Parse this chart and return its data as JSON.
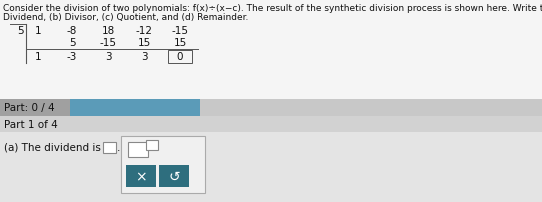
{
  "synth_c": "5",
  "synth_row1": [
    "1",
    "-8",
    "18",
    "-12",
    "-15"
  ],
  "synth_row2": [
    "",
    "5",
    "-15",
    "15",
    "15"
  ],
  "synth_row3": [
    "1",
    "-3",
    "3",
    "3",
    "0"
  ],
  "part_progress_text": "Part: 0 / 4",
  "part_label": "Part 1 of 4",
  "part_a_text": "(a) The dividend is",
  "bg_main": "#dcdcdc",
  "bg_white": "#f5f5f5",
  "bg_part_bar": "#c8c8c8",
  "bg_part1": "#d2d2d2",
  "bg_progress": "#5b9bb8",
  "btn_color": "#2e6e7e",
  "text_color": "#111111",
  "title_fontsize": 6.5,
  "body_fontsize": 7.5,
  "synth_fontsize": 7.5,
  "title_text1": "Consider the division of two polynomials: f(x)÷(x−c). The result of the synthetic division process is shown here. Write the polynomials representing the (a)",
  "title_text2": "Dividend, (b) Divisor, (c) Quotient, and (d) Remainder."
}
